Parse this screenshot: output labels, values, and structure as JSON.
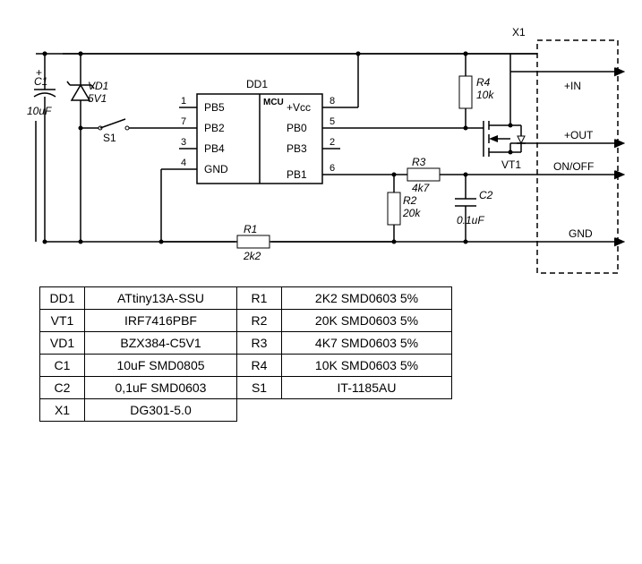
{
  "connector": {
    "ref": "X1",
    "pins": [
      "+IN",
      "+OUT",
      "ON/OFF",
      "GND"
    ]
  },
  "ic": {
    "ref": "DD1",
    "core": "MCU",
    "left_pins": [
      {
        "num": "1",
        "name": "PB5"
      },
      {
        "num": "7",
        "name": "PB2"
      },
      {
        "num": "3",
        "name": "PB4"
      },
      {
        "num": "4",
        "name": "GND"
      }
    ],
    "right_pins": [
      {
        "num": "8",
        "name": "+Vcc"
      },
      {
        "num": "5",
        "name": "PB0"
      },
      {
        "num": "2",
        "name": "PB3"
      },
      {
        "num": "6",
        "name": "PB1"
      }
    ]
  },
  "components": {
    "C1": {
      "ref": "C1",
      "val": "10uF"
    },
    "VD1": {
      "ref": "VD1",
      "val": "5V1"
    },
    "S1": {
      "ref": "S1"
    },
    "R1": {
      "ref": "R1",
      "val": "2k2"
    },
    "R2": {
      "ref": "R2",
      "val": "20k"
    },
    "R3": {
      "ref": "R3",
      "val": "4k7"
    },
    "R4": {
      "ref": "R4",
      "val": "10k"
    },
    "C2": {
      "ref": "C2",
      "val": "0.1uF"
    },
    "VT1": {
      "ref": "VT1"
    }
  },
  "bom": {
    "rows": [
      [
        "DD1",
        "ATtiny13A-SSU",
        "R1",
        "2K2 SMD0603 5%"
      ],
      [
        "VT1",
        "IRF7416PBF",
        "R2",
        "20K  SMD0603 5%"
      ],
      [
        "VD1",
        "BZX384-C5V1",
        "R3",
        "4K7  SMD0603 5%"
      ],
      [
        "C1",
        "10uF SMD0805",
        "R4",
        "10K  SMD0603 5%"
      ],
      [
        "C2",
        "0,1uF SMD0603",
        "S1",
        "IT-1185AU"
      ],
      [
        "X1",
        "DG301-5.0",
        "",
        ""
      ]
    ]
  },
  "style": {
    "bg": "#ffffff",
    "stroke": "#000000",
    "font": "Arial",
    "title_fontsize": 12,
    "pin_fontsize": 11,
    "table_fontsize": 14
  }
}
